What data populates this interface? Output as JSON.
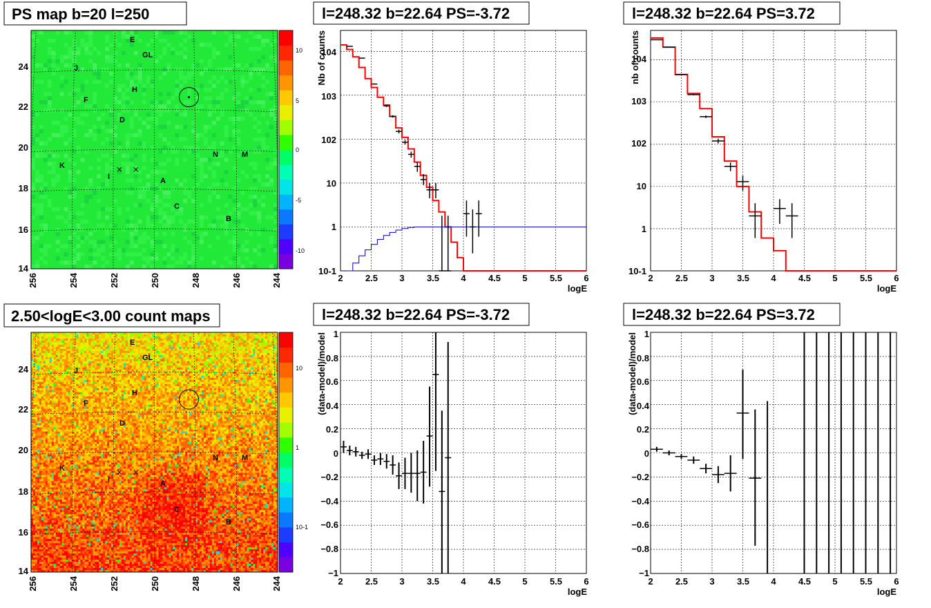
{
  "panels": {
    "ps_map": {
      "title": "PS map b=20 l=250",
      "x_ticks": [
        "256",
        "254",
        "252",
        "250",
        "248",
        "246",
        "244"
      ],
      "y_ticks": [
        "14",
        "16",
        "18",
        "20",
        "22",
        "24"
      ],
      "palette_ticks": [
        "10",
        "5",
        "0",
        "-5",
        "-10"
      ],
      "sources": [
        "E",
        "GL",
        "J",
        "H",
        "F",
        "D",
        "K",
        "I",
        "N",
        "M",
        "A",
        "C",
        "B"
      ]
    },
    "count_map": {
      "title": "2.50<logE<3.00 count maps",
      "x_ticks": [
        "256",
        "254",
        "252",
        "250",
        "248",
        "246",
        "244"
      ],
      "y_ticks": [
        "14",
        "16",
        "18",
        "20",
        "22",
        "24"
      ],
      "palette_ticks": [
        "10",
        "1",
        "10-1"
      ],
      "sources": [
        "E",
        "GL",
        "J",
        "H",
        "F",
        "D",
        "K",
        "I",
        "N",
        "M",
        "A",
        "C",
        "B"
      ]
    },
    "spec_left": {
      "title": "l=248.32 b=22.64 PS=-3.72",
      "xlabel": "logE",
      "ylabel": "Nb of counts",
      "x_ticks": [
        "2",
        "2.5",
        "3",
        "3.5",
        "4",
        "4.5",
        "5",
        "5.5",
        "6"
      ],
      "y_ticks": [
        "10-1",
        "1",
        "10",
        "102",
        "103",
        "104"
      ]
    },
    "spec_right": {
      "title": "l=248.32 b=22.64 PS=3.72",
      "xlabel": "logE",
      "ylabel": "nb of counts",
      "x_ticks": [
        "2",
        "2.5",
        "3",
        "3.5",
        "4",
        "4.5",
        "5",
        "5.5",
        "6"
      ],
      "y_ticks": [
        "10-1",
        "1",
        "10",
        "102",
        "103",
        "104"
      ]
    },
    "resid_left": {
      "title": "l=248.32 b=22.64 PS=-3.72",
      "xlabel": "logE",
      "ylabel": "(data-model)/model",
      "x_ticks": [
        "2",
        "2.5",
        "3",
        "3.5",
        "4",
        "4.5",
        "5",
        "5.5",
        "6"
      ],
      "y_ticks": [
        "−1",
        "−0.8",
        "−0.6",
        "−0.4",
        "−0.2",
        "0",
        "0.2",
        "0.4",
        "0.6",
        "0.8",
        "1"
      ]
    },
    "resid_right": {
      "title": "l=248.32 b=22.64 PS=3.72",
      "xlabel": "logE",
      "ylabel": "(data-model)/model",
      "x_ticks": [
        "2",
        "2.5",
        "3",
        "3.5",
        "4",
        "4.5",
        "5",
        "5.5",
        "6"
      ],
      "y_ticks": [
        "−1",
        "−0.8",
        "−0.6",
        "−0.4",
        "−0.2",
        "0",
        "0.2",
        "0.4",
        "0.6",
        "0.8",
        "1"
      ]
    }
  },
  "chart_data": [
    {
      "id": "ps_map",
      "type": "heatmap",
      "title": "PS map b=20 l=250",
      "xlim": [
        256,
        244
      ],
      "ylim": [
        14,
        26
      ],
      "zlim": [
        -13,
        13
      ],
      "colors": {
        "dominant": "#20e040"
      },
      "sources": [
        {
          "name": "E",
          "l": 250.9,
          "b": 25.4
        },
        {
          "name": "GL",
          "l": 250.2,
          "b": 24.7
        },
        {
          "name": "J",
          "l": 253.3,
          "b": 24.0
        },
        {
          "name": "H",
          "l": 250.9,
          "b": 23.1
        },
        {
          "name": "F",
          "l": 253.8,
          "b": 22.6
        },
        {
          "name": "D",
          "l": 251.4,
          "b": 21.5
        },
        {
          "name": "K",
          "l": 254.4,
          "b": 19.2
        },
        {
          "name": "I",
          "l": 252.3,
          "b": 18.7
        },
        {
          "name": "N",
          "l": 247.2,
          "b": 19.9
        },
        {
          "name": "M",
          "l": 245.8,
          "b": 19.9
        },
        {
          "name": "A",
          "l": 249.8,
          "b": 18.5
        },
        {
          "name": "C",
          "l": 249.1,
          "b": 17.2
        },
        {
          "name": "B",
          "l": 246.8,
          "b": 16.5
        }
      ],
      "crosses": [
        {
          "l": 251.7,
          "b": 19.0
        },
        {
          "l": 250.9,
          "b": 19.0
        }
      ],
      "circle": {
        "l": 248.32,
        "b": 22.64,
        "r": 0.5
      }
    },
    {
      "id": "count_map",
      "type": "heatmap",
      "title": "2.50<logE<3.00 count maps",
      "xlim": [
        256,
        244
      ],
      "ylim": [
        14,
        26
      ],
      "zlim": [
        0.02,
        30
      ],
      "zscale": "log",
      "sources": [
        {
          "name": "E",
          "l": 250.9,
          "b": 25.4
        },
        {
          "name": "GL",
          "l": 250.2,
          "b": 24.7
        },
        {
          "name": "J",
          "l": 253.3,
          "b": 24.0
        },
        {
          "name": "H",
          "l": 250.9,
          "b": 23.1
        },
        {
          "name": "F",
          "l": 253.8,
          "b": 22.6
        },
        {
          "name": "D",
          "l": 251.4,
          "b": 21.5
        },
        {
          "name": "K",
          "l": 254.4,
          "b": 19.2
        },
        {
          "name": "I",
          "l": 252.3,
          "b": 18.7
        },
        {
          "name": "N",
          "l": 247.2,
          "b": 19.9
        },
        {
          "name": "M",
          "l": 245.8,
          "b": 19.9
        },
        {
          "name": "A",
          "l": 249.8,
          "b": 18.5
        },
        {
          "name": "C",
          "l": 249.1,
          "b": 17.2
        },
        {
          "name": "B",
          "l": 246.8,
          "b": 16.5
        }
      ],
      "crosses": [
        {
          "l": 251.7,
          "b": 19.0
        },
        {
          "l": 250.9,
          "b": 19.0
        }
      ],
      "circle": {
        "l": 248.32,
        "b": 22.64,
        "r": 0.5
      }
    },
    {
      "id": "spec_left",
      "type": "line",
      "title": "l=248.32 b=22.64 PS=-3.72",
      "xlabel": "logE",
      "ylabel": "Nb of counts",
      "xlim": [
        2,
        6
      ],
      "ylim": [
        0.1,
        30000
      ],
      "yscale": "log",
      "grid": true,
      "series": [
        {
          "style": "histogram",
          "color": "#ff0000",
          "edges": [
            2.0,
            2.1,
            2.2,
            2.3,
            2.4,
            2.5,
            2.6,
            2.7,
            2.8,
            2.9,
            3.0,
            3.1,
            3.2,
            3.3,
            3.4,
            3.5,
            3.6,
            3.7,
            3.8,
            3.9,
            4.0,
            6.0
          ],
          "values": [
            14000,
            11000,
            7500,
            4300,
            2400,
            1500,
            900,
            600,
            330,
            180,
            110,
            60,
            30,
            15,
            8,
            4,
            2.2,
            1.0,
            0.45,
            0.2,
            0.1
          ]
        },
        {
          "style": "line",
          "color": "#0000bb",
          "x": [
            2.1,
            2.2,
            2.3,
            2.4,
            2.5,
            2.6,
            2.7,
            2.8,
            2.9,
            3.0,
            3.1,
            3.2,
            3.3,
            3.4,
            3.5,
            6.0
          ],
          "y": [
            0.1,
            0.15,
            0.22,
            0.3,
            0.4,
            0.52,
            0.64,
            0.75,
            0.85,
            0.92,
            0.97,
            1.0,
            1.0,
            1.0,
            1.0,
            1.0
          ]
        },
        {
          "style": "errorbars",
          "color": "#000000",
          "x": [
            2.15,
            2.35,
            2.55,
            2.75,
            2.85,
            2.95,
            3.05,
            3.15,
            3.25,
            3.35,
            3.45,
            3.55,
            3.65,
            3.75,
            4.05,
            4.15,
            4.25
          ],
          "y": [
            13000,
            7000,
            1800,
            570,
            330,
            150,
            85,
            45,
            24,
            12,
            7,
            7,
            0.1,
            0.1,
            2,
            1,
            2
          ],
          "ylo": [
            12800,
            6900,
            1750,
            540,
            310,
            135,
            75,
            38,
            18,
            9,
            4.5,
            4.5,
            0.1,
            0.1,
            0.6,
            0.25,
            0.6
          ],
          "yhi": [
            13200,
            7100,
            1850,
            600,
            350,
            165,
            95,
            52,
            30,
            16,
            10,
            10,
            1.8,
            1.8,
            4,
            2.5,
            4
          ]
        }
      ]
    },
    {
      "id": "spec_right",
      "type": "line",
      "title": "l=248.32 b=22.64 PS=3.72",
      "xlabel": "logE",
      "ylabel": "nb of counts",
      "xlim": [
        2,
        6
      ],
      "ylim": [
        0.1,
        50000
      ],
      "yscale": "log",
      "grid": true,
      "series": [
        {
          "style": "histogram",
          "color": "#ff0000",
          "edges": [
            2.0,
            2.2,
            2.4,
            2.6,
            2.8,
            3.0,
            3.2,
            3.4,
            3.6,
            3.8,
            4.0,
            4.2,
            6.0
          ],
          "values": [
            33000,
            20000,
            4500,
            1600,
            700,
            150,
            40,
            10,
            2.5,
            0.6,
            0.3,
            0.1
          ]
        },
        {
          "style": "errorbars",
          "color": "#000000",
          "x": [
            2.1,
            2.3,
            2.5,
            2.7,
            2.9,
            3.1,
            3.3,
            3.5,
            3.7,
            4.1,
            4.3
          ],
          "y": [
            30000,
            20000,
            4500,
            1500,
            450,
            120,
            30,
            13,
            2,
            3,
            2
          ],
          "ylo": [
            29800,
            19800,
            4400,
            1450,
            420,
            105,
            23,
            8,
            0.6,
            1.3,
            0.6
          ],
          "yhi": [
            30200,
            20200,
            4600,
            1550,
            480,
            135,
            37,
            18,
            4,
            5,
            4
          ],
          "xerr": 0.1
        }
      ]
    },
    {
      "id": "resid_left",
      "type": "scatter",
      "title": "l=248.32 b=22.64 PS=-3.72",
      "xlabel": "logE",
      "ylabel": "(data-model)/model",
      "xlim": [
        2,
        6
      ],
      "ylim": [
        -1,
        1
      ],
      "grid": true,
      "series": [
        {
          "style": "errorbars",
          "color": "#000000",
          "xerr": 0.05,
          "x": [
            2.05,
            2.15,
            2.25,
            2.35,
            2.45,
            2.55,
            2.65,
            2.75,
            2.85,
            2.95,
            3.05,
            3.15,
            3.25,
            3.35,
            3.45,
            3.55,
            3.65,
            3.75
          ],
          "y": [
            0.05,
            0.02,
            0.01,
            -0.02,
            -0.01,
            -0.06,
            -0.05,
            -0.07,
            -0.1,
            -0.19,
            -0.17,
            -0.17,
            -0.17,
            -0.16,
            0.14,
            0.65,
            -0.32,
            -0.04
          ],
          "ylo": [
            0.0,
            -0.02,
            -0.03,
            -0.05,
            -0.05,
            -0.1,
            -0.1,
            -0.13,
            -0.18,
            -0.3,
            -0.3,
            -0.33,
            -0.4,
            -0.42,
            -0.28,
            -0.15,
            -1.0,
            -1.0
          ],
          "yhi": [
            0.1,
            0.06,
            0.05,
            0.01,
            0.03,
            -0.02,
            0.0,
            -0.01,
            -0.02,
            -0.08,
            -0.04,
            0.0,
            0.02,
            0.1,
            0.55,
            1.0,
            0.35,
            0.92
          ]
        }
      ]
    },
    {
      "id": "resid_right",
      "type": "scatter",
      "title": "l=248.32 b=22.64 PS=3.72",
      "xlabel": "logE",
      "ylabel": "(data-model)/model",
      "xlim": [
        2,
        6
      ],
      "ylim": [
        -1,
        1
      ],
      "grid": true,
      "series": [
        {
          "style": "errorbars",
          "color": "#000000",
          "xerr": 0.1,
          "x": [
            2.1,
            2.3,
            2.5,
            2.7,
            2.9,
            3.1,
            3.3,
            3.5,
            3.7,
            3.9,
            4.5,
            4.7,
            4.9,
            5.1,
            5.3,
            5.5,
            5.7,
            5.9
          ],
          "y": [
            0.03,
            0.0,
            -0.03,
            -0.06,
            -0.13,
            -0.18,
            -0.17,
            0.33,
            -0.21,
            -1.0,
            1.0,
            1.0,
            1.0,
            1.0,
            1.0,
            1.0,
            1.0,
            1.0
          ],
          "ylo": [
            0.01,
            -0.02,
            -0.05,
            -0.09,
            -0.17,
            -0.25,
            -0.32,
            -0.05,
            -0.77,
            -1.0,
            -1.0,
            -1.0,
            -1.0,
            -1.0,
            -1.0,
            -1.0,
            -1.0,
            -1.0
          ],
          "yhi": [
            0.05,
            0.02,
            -0.01,
            -0.03,
            -0.09,
            -0.11,
            -0.02,
            0.69,
            0.36,
            0.43,
            1.0,
            1.0,
            1.0,
            1.0,
            1.0,
            1.0,
            1.0,
            1.0
          ],
          "noxerr_from": 9
        }
      ]
    }
  ]
}
